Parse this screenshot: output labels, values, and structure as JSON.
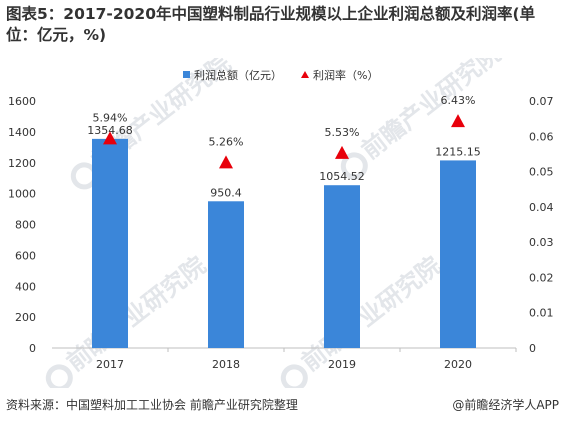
{
  "title": "图表5：2017-2020年中国塑料制品行业规模以上企业利润总额及利润率(单位：亿元，%)",
  "source": "资料来源：中国塑料加工工业协会 前瞻产业研究院整理",
  "brand": "@前瞻经济学人APP",
  "watermark": "前瞻产业研究院",
  "colors": {
    "bar": "#3b86d9",
    "marker": "#e8000b",
    "text": "#333333",
    "axis": "#bfbfbf"
  },
  "chart_data": {
    "type": "bar",
    "categories": [
      "2017",
      "2018",
      "2019",
      "2020"
    ],
    "series": [
      {
        "name": "利润总额（亿元）",
        "type": "bar",
        "axis": "left",
        "values": [
          1354.68,
          950.4,
          1054.52,
          1215.15
        ],
        "labels": [
          "1354.68",
          "950.4",
          "1054.52",
          "1215.15"
        ]
      },
      {
        "name": "利润率（%）",
        "type": "scatter",
        "marker": "triangle",
        "axis": "right",
        "values": [
          0.0594,
          0.0526,
          0.0553,
          0.0643
        ],
        "labels": [
          "5.94%",
          "5.26%",
          "5.53%",
          "6.43%"
        ]
      }
    ],
    "yleft": {
      "min": 0,
      "max": 1600,
      "ticks": [
        "0",
        "200",
        "400",
        "600",
        "800",
        "1000",
        "1200",
        "1400",
        "1600"
      ]
    },
    "yright": {
      "min": 0,
      "max": 0.07,
      "ticks": [
        "0",
        "0.01",
        "0.02",
        "0.03",
        "0.04",
        "0.05",
        "0.06",
        "0.07"
      ]
    },
    "legend_position": "top-center",
    "grid": false
  }
}
